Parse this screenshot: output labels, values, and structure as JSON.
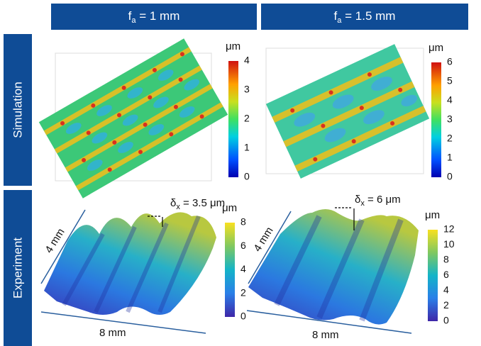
{
  "columns": [
    {
      "symbol": "f",
      "subscript": "a",
      "rest": " = 1 mm"
    },
    {
      "symbol": "f",
      "subscript": "a",
      "rest": " = 1.5 mm"
    }
  ],
  "rows": [
    "Simulation",
    "Experiment"
  ],
  "panels": [
    {
      "unit": "μm",
      "ticks": [
        0,
        1,
        2,
        3,
        4
      ]
    },
    {
      "unit": "μm",
      "ticks": [
        0,
        1,
        2,
        3,
        4,
        5,
        6
      ]
    },
    {
      "unit": "μm",
      "ticks": [
        0,
        2,
        4,
        6,
        8
      ],
      "delta": {
        "symbol": "δ",
        "subscript": "x",
        "rest": " = 3.5 μm"
      },
      "width": "4 mm",
      "length": "8 mm"
    },
    {
      "unit": "μm",
      "ticks": [
        0,
        2,
        4,
        6,
        8,
        10,
        12
      ],
      "delta": {
        "symbol": "δ",
        "subscript": "x",
        "rest": " = 6 μm"
      },
      "width": "4 mm",
      "length": "8 mm"
    }
  ]
}
